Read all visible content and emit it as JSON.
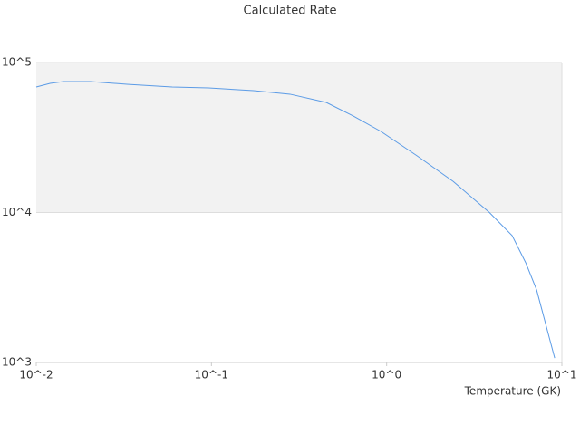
{
  "chart_data": {
    "type": "line",
    "title": "Calculated Rate",
    "x_label": "Temperature (GK)",
    "x": [
      0.01,
      0.012,
      0.0143,
      0.0204,
      0.0329,
      0.0597,
      0.0962,
      0.174,
      0.281,
      0.452,
      0.646,
      0.925,
      1.49,
      2.4,
      3.86,
      5.2,
      6.22,
      7.18,
      9.1
    ],
    "series": [
      {
        "name": "Calculated Rate",
        "color": "#5b9be6",
        "values": [
          68700,
          72600,
          74600,
          74600,
          71600,
          68700,
          67700,
          65000,
          61500,
          54200,
          44000,
          34800,
          23900,
          16100,
          10000,
          7020,
          4620,
          3040,
          1070
        ]
      }
    ],
    "log_x": true,
    "log_y": true,
    "xlim": [
      0.01,
      10
    ],
    "xticks": [
      {
        "value": 0.01,
        "label": "10^-2"
      },
      {
        "value": 0.1,
        "label": "10^-1"
      },
      {
        "value": 1,
        "label": "10^0"
      },
      {
        "value": 10,
        "label": "10^1"
      }
    ],
    "ylim": [
      1000,
      100000
    ],
    "yticks": [
      {
        "value": 1000,
        "label": "10^3"
      },
      {
        "value": 10000,
        "label": "10^4"
      },
      {
        "value": 100000,
        "label": "10^5"
      }
    ]
  }
}
